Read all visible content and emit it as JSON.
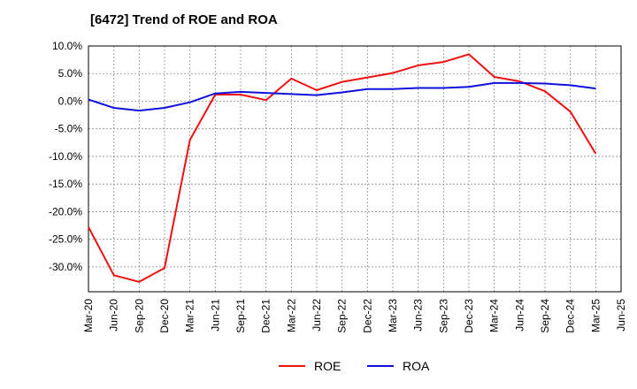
{
  "chart_data": {
    "type": "line",
    "title": "[6472]  Trend of ROE and ROA",
    "xlabel": "",
    "ylabel": "",
    "x": [
      "Mar-20",
      "Jun-20",
      "Sep-20",
      "Dec-20",
      "Mar-21",
      "Jun-21",
      "Sep-21",
      "Dec-21",
      "Mar-22",
      "Jun-22",
      "Sep-22",
      "Dec-22",
      "Mar-23",
      "Jun-23",
      "Sep-23",
      "Dec-23",
      "Mar-24",
      "Jun-24",
      "Sep-24",
      "Dec-24",
      "Mar-25",
      "Jun-25"
    ],
    "ylim": [
      -34.5,
      10
    ],
    "yticks": [
      10,
      5,
      0,
      -5,
      -10,
      -15,
      -20,
      -25,
      -30
    ],
    "ytick_labels": [
      "10.0%",
      "5.0%",
      "0.0%",
      "-5.0%",
      "-10.0%",
      "-15.0%",
      "-20.0%",
      "-25.0%",
      "-30.0%"
    ],
    "grid": true,
    "legend": "bottom-center",
    "series": [
      {
        "name": "ROE",
        "color": "#ee1111",
        "values": [
          -22.8,
          -31.5,
          -32.7,
          -30.2,
          -7.0,
          1.2,
          1.2,
          0.2,
          4.1,
          2.0,
          3.5,
          4.3,
          5.1,
          6.5,
          7.1,
          8.5,
          4.4,
          3.6,
          1.8,
          -1.9,
          -9.5,
          null
        ]
      },
      {
        "name": "ROA",
        "color": "#1111dd",
        "values": [
          0.3,
          -1.2,
          -1.7,
          -1.2,
          -0.2,
          1.4,
          1.7,
          1.5,
          1.3,
          1.1,
          1.6,
          2.2,
          2.2,
          2.4,
          2.4,
          2.6,
          3.3,
          3.3,
          3.2,
          2.9,
          2.3,
          null
        ]
      }
    ]
  }
}
